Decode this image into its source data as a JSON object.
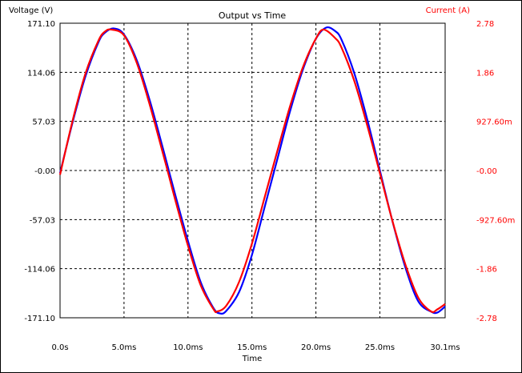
{
  "chart_data": {
    "type": "line",
    "title": "Output vs Time",
    "xlabel": "Time",
    "x_unit": "ms",
    "xlim": [
      0,
      30.1
    ],
    "x_ticks": [
      {
        "value": 0,
        "label": "0.0s"
      },
      {
        "value": 5,
        "label": "5.0ms"
      },
      {
        "value": 10,
        "label": "10.0ms"
      },
      {
        "value": 15,
        "label": "15.0ms"
      },
      {
        "value": 20,
        "label": "20.0ms"
      },
      {
        "value": 25,
        "label": "25.0ms"
      },
      {
        "value": 30.1,
        "label": "30.1ms"
      }
    ],
    "y_left": {
      "label": "Voltage (V)",
      "range": [
        -171.1,
        171.1
      ],
      "ticks": [
        "171.10",
        "114.06",
        "57.03",
        "-0.00",
        "-57.03",
        "-114.06",
        "-171.10"
      ],
      "color": "#000000"
    },
    "y_right": {
      "label": "Current (A)",
      "range": [
        -2.78,
        2.78
      ],
      "ticks": [
        "2.78",
        "1.86",
        "927.60m",
        "-0.00",
        "-927.60m",
        "-1.86",
        "-2.78"
      ],
      "color": "#ff0000"
    },
    "grid": true,
    "series": [
      {
        "axis": "left",
        "color": "#0000ff",
        "x": [
          0,
          1,
          2,
          3,
          3.5,
          4.2,
          5,
          6,
          7,
          8,
          8.5,
          9,
          10,
          11,
          12,
          12.5,
          13,
          14,
          15,
          16,
          17,
          18,
          19,
          20,
          20.8,
          21.5,
          22,
          23,
          24,
          25,
          26,
          27,
          28,
          29,
          29.5,
          30.1
        ],
        "y": [
          -3,
          57,
          110,
          149,
          160,
          165,
          158,
          128,
          82,
          28,
          0,
          -28,
          -82,
          -130,
          -160,
          -166,
          -163,
          -141,
          -98,
          -42,
          14,
          70,
          118,
          153,
          166,
          162,
          152,
          113,
          60,
          0,
          -60,
          -113,
          -152,
          -164,
          -165,
          -158
        ]
      },
      {
        "axis": "right",
        "color": "#ff0000",
        "x": [
          0,
          1,
          2,
          3,
          3.5,
          4.0,
          5,
          6,
          7,
          8,
          8.4,
          9,
          10,
          11,
          12,
          12.3,
          13,
          14,
          15,
          16,
          17,
          18,
          19,
          20,
          20.6,
          21.5,
          22,
          23,
          24,
          25,
          26,
          27,
          28,
          29,
          29.5,
          30.1
        ],
        "y": [
          -0.08,
          0.96,
          1.84,
          2.45,
          2.62,
          2.66,
          2.55,
          2.03,
          1.25,
          0.36,
          0,
          -0.55,
          -1.42,
          -2.17,
          -2.62,
          -2.66,
          -2.55,
          -2.1,
          -1.38,
          -0.5,
          0.38,
          1.23,
          1.96,
          2.49,
          2.66,
          2.5,
          2.32,
          1.69,
          0.86,
          -0.05,
          -0.97,
          -1.78,
          -2.4,
          -2.66,
          -2.62,
          -2.52
        ]
      }
    ]
  }
}
